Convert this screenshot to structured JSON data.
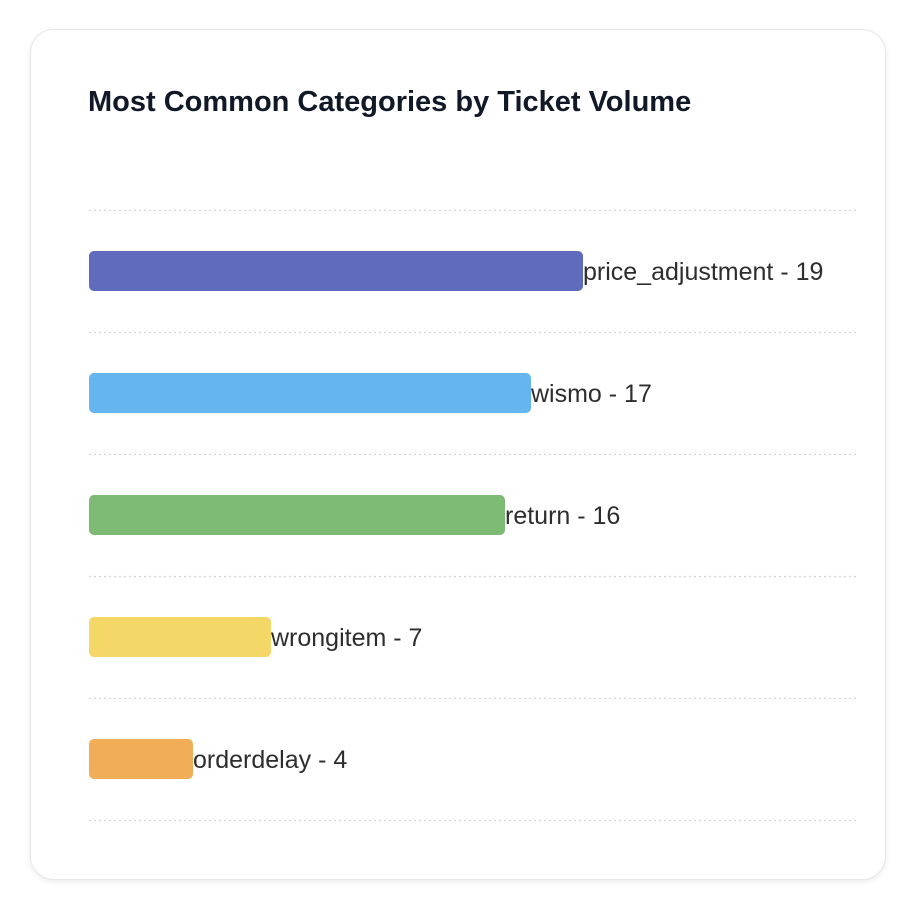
{
  "chart_data": {
    "type": "bar",
    "orientation": "horizontal",
    "title": "Most Common Categories by Ticket Volume",
    "categories": [
      "price_adjustment",
      "wismo",
      "return",
      "wrongitem",
      "orderdelay"
    ],
    "values": [
      19,
      17,
      16,
      7,
      4
    ],
    "labels": [
      "price_adjustment - 19",
      "wismo - 17",
      "return - 16",
      "wrongitem - 7",
      "orderdelay - 4"
    ],
    "colors": [
      "#5f6bbd",
      "#64b5f0",
      "#7dba74",
      "#f4d766",
      "#f2ad58"
    ],
    "xlim": [
      0,
      19
    ],
    "grid": true
  }
}
